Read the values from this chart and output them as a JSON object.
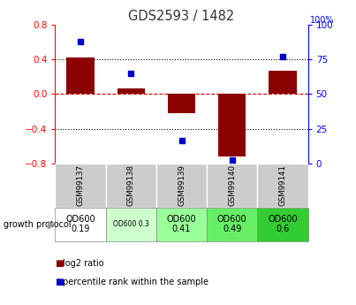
{
  "title": "GDS2593 / 1482",
  "samples": [
    "GSM99137",
    "GSM99138",
    "GSM99139",
    "GSM99140",
    "GSM99141"
  ],
  "log2_ratio": [
    0.42,
    0.07,
    -0.22,
    -0.72,
    0.27
  ],
  "percentile_rank": [
    88,
    65,
    17,
    3,
    77
  ],
  "ylim_left": [
    -0.8,
    0.8
  ],
  "ylim_right": [
    0,
    100
  ],
  "bar_color": "#8B0000",
  "dot_color": "#0000CC",
  "zero_line_color": "#CC0000",
  "protocol_labels": [
    "OD600\n0.19",
    "OD600 0.3",
    "OD600\n0.41",
    "OD600\n0.49",
    "OD600\n0.6"
  ],
  "protocol_bg": [
    "#ffffff",
    "#ccffcc",
    "#99ff99",
    "#66ee66",
    "#33cc33"
  ],
  "label_row_bg": "#cccccc",
  "title_color": "#333333",
  "right_axis_ticks": [
    0,
    25,
    50,
    75,
    100
  ],
  "left_axis_ticks": [
    -0.8,
    -0.4,
    0,
    0.4,
    0.8
  ],
  "hlines": [
    -0.4,
    0.4
  ],
  "legend_items": [
    {
      "color": "#8B0000",
      "label": "log2 ratio"
    },
    {
      "color": "#0000CC",
      "label": "percentile rank within the sample"
    }
  ]
}
